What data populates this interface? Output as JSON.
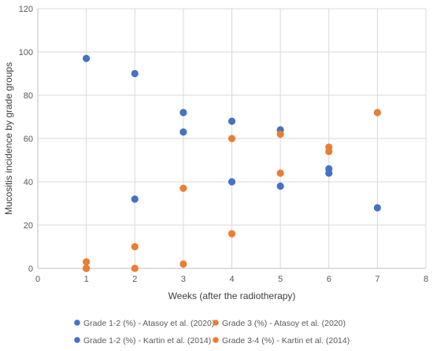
{
  "chart_data": {
    "type": "scatter",
    "title": "",
    "xlabel": "Weeks (after the radiotherapy)",
    "ylabel": "Mucositis incidence by grade groups",
    "xlim": [
      0,
      8
    ],
    "ylim": [
      0,
      120
    ],
    "x_ticks": [
      0,
      1,
      2,
      3,
      4,
      5,
      6,
      7,
      8
    ],
    "y_ticks": [
      0,
      20,
      40,
      60,
      80,
      100,
      120
    ],
    "grid": "vertical and horizontal",
    "legend_position": "bottom",
    "series": [
      {
        "name": "Grade 1-2 (%) - Atasoy et al. (2020)",
        "color": "#4472C4",
        "points": [
          [
            1,
            97
          ],
          [
            2,
            90
          ],
          [
            3,
            72
          ],
          [
            4,
            68
          ],
          [
            5,
            64
          ],
          [
            6,
            44
          ]
        ]
      },
      {
        "name": "Grade 3 (%) - Atasoy et al. (2020)",
        "color": "#ED7D31",
        "points": [
          [
            1,
            3
          ],
          [
            2,
            10
          ],
          [
            3,
            2
          ],
          [
            4,
            16
          ],
          [
            5,
            44
          ],
          [
            6,
            54
          ]
        ]
      },
      {
        "name": "Grade 1-2 (%) - Kartin et al. (2014)",
        "color": "#4472C4",
        "points": [
          [
            1,
            0
          ],
          [
            2,
            32
          ],
          [
            3,
            63
          ],
          [
            4,
            40
          ],
          [
            5,
            38
          ],
          [
            6,
            46
          ],
          [
            7,
            28
          ]
        ]
      },
      {
        "name": "Grade 3-4 (%) - Kartin et al. (2014)",
        "color": "#ED7D31",
        "points": [
          [
            1,
            0
          ],
          [
            2,
            0
          ],
          [
            3,
            37
          ],
          [
            4,
            60
          ],
          [
            5,
            62
          ],
          [
            6,
            56
          ],
          [
            7,
            72
          ]
        ]
      }
    ]
  }
}
